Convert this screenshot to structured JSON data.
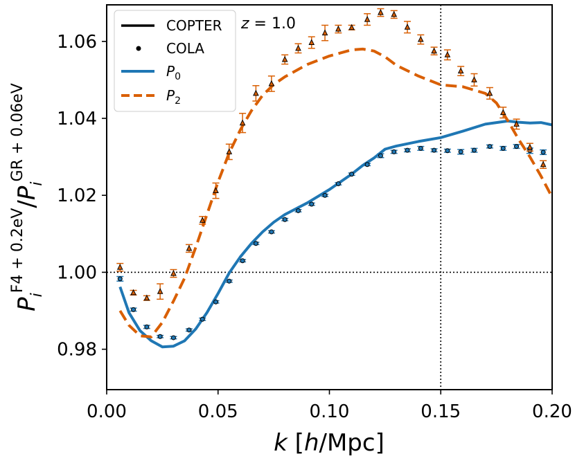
{
  "chart_data": {
    "type": "line",
    "annotation": "z = 1.0",
    "xlabel": "k [h/Mpc]",
    "ylabel": "P_i^{F4+0.2eV} / P_i^{GR+0.06eV}",
    "xlim": [
      0.0,
      0.2
    ],
    "ylim": [
      0.9695,
      1.0695
    ],
    "x_ticks": [
      "0.00",
      "0.05",
      "0.10",
      "0.15",
      "0.20"
    ],
    "y_ticks": [
      "0.98",
      "1.00",
      "1.02",
      "1.04",
      "1.06"
    ],
    "reference_lines": {
      "horizontal": 1.0,
      "vertical": 0.15
    },
    "legend": {
      "location": "upper-left",
      "entries": [
        {
          "label": "COPTER",
          "style": "solid-black"
        },
        {
          "label": "COLA",
          "style": "dot-black"
        },
        {
          "label": "P0",
          "style": "solid-blue"
        },
        {
          "label": "P2",
          "style": "dashed-orange"
        }
      ]
    },
    "colors": {
      "p0": "#1f77b4",
      "p2": "#d95f02",
      "marker_edge": "#000000"
    },
    "copter_lines": [
      {
        "name": "P0",
        "style": "solid",
        "x": [
          0.006,
          0.01,
          0.015,
          0.02,
          0.025,
          0.03,
          0.035,
          0.04,
          0.045,
          0.05,
          0.055,
          0.06,
          0.065,
          0.07,
          0.075,
          0.08,
          0.09,
          0.1,
          0.11,
          0.115,
          0.12,
          0.125,
          0.13,
          0.14,
          0.15,
          0.16,
          0.17,
          0.18,
          0.185,
          0.19,
          0.195,
          0.2
        ],
        "y": [
          0.9962,
          0.9895,
          0.9848,
          0.9822,
          0.9806,
          0.9808,
          0.9822,
          0.9853,
          0.9895,
          0.9945,
          0.9998,
          1.004,
          1.0075,
          1.0105,
          1.013,
          1.015,
          1.018,
          1.0215,
          1.0255,
          1.0278,
          1.0297,
          1.032,
          1.0328,
          1.034,
          1.035,
          1.0367,
          1.0385,
          1.0393,
          1.039,
          1.0388,
          1.0389,
          1.0383
        ]
      },
      {
        "name": "P2",
        "style": "dashed",
        "x": [
          0.006,
          0.01,
          0.015,
          0.02,
          0.025,
          0.03,
          0.035,
          0.04,
          0.045,
          0.05,
          0.055,
          0.06,
          0.065,
          0.07,
          0.075,
          0.08,
          0.09,
          0.1,
          0.11,
          0.115,
          0.12,
          0.125,
          0.13,
          0.14,
          0.15,
          0.16,
          0.17,
          0.175,
          0.18,
          0.185,
          0.19,
          0.195,
          0.2
        ],
        "y": [
          0.99,
          0.9862,
          0.9835,
          0.9832,
          0.987,
          0.9925,
          0.9985,
          1.0065,
          1.015,
          1.0235,
          1.031,
          1.037,
          1.042,
          1.046,
          1.0488,
          1.0508,
          1.054,
          1.0562,
          1.0578,
          1.058,
          1.0575,
          1.056,
          1.0538,
          1.051,
          1.0487,
          1.0482,
          1.0465,
          1.044,
          1.0395,
          1.0345,
          1.03,
          1.025,
          1.0195
        ]
      }
    ],
    "cola_points": [
      {
        "name": "P0",
        "marker": "circle",
        "x": [
          0.006,
          0.012,
          0.018,
          0.024,
          0.03,
          0.037,
          0.043,
          0.049,
          0.055,
          0.061,
          0.067,
          0.074,
          0.08,
          0.086,
          0.092,
          0.098,
          0.104,
          0.11,
          0.117,
          0.123,
          0.129,
          0.135,
          0.141,
          0.147,
          0.153,
          0.159,
          0.165,
          0.172,
          0.178,
          0.184,
          0.19,
          0.196
        ],
        "y": [
          0.9983,
          0.9903,
          0.9858,
          0.9833,
          0.983,
          0.985,
          0.9878,
          0.9923,
          0.9977,
          1.003,
          1.0075,
          1.0105,
          1.0137,
          1.016,
          1.0177,
          1.02,
          1.023,
          1.0255,
          1.028,
          1.0303,
          1.0313,
          1.0317,
          1.0322,
          1.0317,
          1.0316,
          1.0313,
          1.0317,
          1.0327,
          1.0322,
          1.0327,
          1.0316,
          1.0312
        ],
        "yerr": [
          0.0006,
          0.0004,
          0.0004,
          0.0003,
          0.0003,
          0.0003,
          0.0003,
          0.0003,
          0.0003,
          0.0003,
          0.0003,
          0.0003,
          0.0003,
          0.0003,
          0.0003,
          0.0003,
          0.0003,
          0.0003,
          0.0003,
          0.0005,
          0.0004,
          0.0004,
          0.0005,
          0.0004,
          0.0004,
          0.0006,
          0.0005,
          0.0004,
          0.0005,
          0.0005,
          0.0007,
          0.0006
        ]
      },
      {
        "name": "P2",
        "marker": "triangle",
        "x": [
          0.006,
          0.012,
          0.018,
          0.024,
          0.03,
          0.037,
          0.043,
          0.049,
          0.055,
          0.061,
          0.067,
          0.074,
          0.08,
          0.086,
          0.092,
          0.098,
          0.104,
          0.11,
          0.117,
          0.123,
          0.129,
          0.135,
          0.141,
          0.147,
          0.153,
          0.159,
          0.165,
          0.172,
          0.178,
          0.184,
          0.19,
          0.196
        ],
        "y": [
          1.0013,
          0.9947,
          0.9933,
          0.995,
          0.9997,
          1.0062,
          1.0135,
          1.0212,
          1.0313,
          1.0388,
          1.0465,
          1.049,
          1.0553,
          1.0582,
          1.0597,
          1.0622,
          1.0632,
          1.0636,
          1.0657,
          1.0675,
          1.067,
          1.0637,
          1.0605,
          1.0575,
          1.0565,
          1.0523,
          1.05,
          1.0465,
          1.0415,
          1.0385,
          1.0325,
          1.028
        ],
        "yerr": [
          0.001,
          0.0006,
          0.0006,
          0.002,
          0.001,
          0.001,
          0.001,
          0.002,
          0.002,
          0.0025,
          0.002,
          0.002,
          0.0012,
          0.0012,
          0.0015,
          0.002,
          0.001,
          0.0006,
          0.0015,
          0.001,
          0.001,
          0.0015,
          0.0012,
          0.001,
          0.0013,
          0.0012,
          0.0016,
          0.0015,
          0.0014,
          0.0013,
          0.001,
          0.001
        ]
      }
    ]
  }
}
